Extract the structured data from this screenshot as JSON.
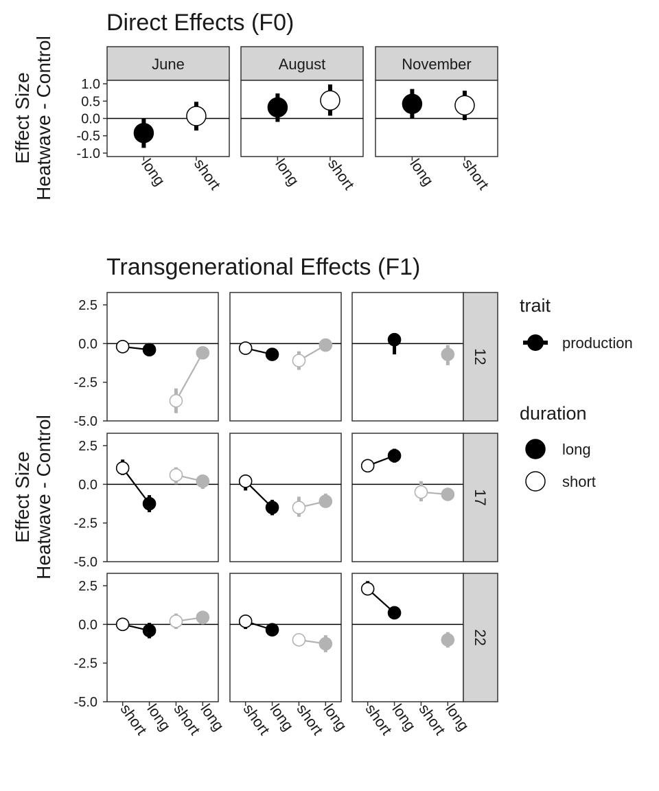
{
  "chart_data": [
    {
      "type": "scatter",
      "title": "Direct Effects (F0)",
      "ylabel": [
        "Effect Size",
        "Heatwave - Control"
      ],
      "ylim": [
        -1.1,
        1.1
      ],
      "yticks": [
        "1.0",
        "0.5",
        "0.0",
        "-0.5",
        "-1.0"
      ],
      "ytick_values": [
        1.0,
        0.5,
        0.0,
        -0.5,
        -1.0
      ],
      "categories": [
        "long",
        "short"
      ],
      "grid": false,
      "reference_line": 0,
      "panels": [
        {
          "label": "June",
          "points": [
            {
              "x": "long",
              "y": -0.42,
              "lo": -0.85,
              "hi": 0.0,
              "duration": "long"
            },
            {
              "x": "short",
              "y": 0.07,
              "lo": -0.35,
              "hi": 0.48,
              "duration": "short"
            }
          ]
        },
        {
          "label": "August",
          "points": [
            {
              "x": "long",
              "y": 0.32,
              "lo": -0.1,
              "hi": 0.72,
              "duration": "long"
            },
            {
              "x": "short",
              "y": 0.52,
              "lo": 0.08,
              "hi": 0.98,
              "duration": "short"
            }
          ]
        },
        {
          "label": "November",
          "points": [
            {
              "x": "long",
              "y": 0.42,
              "lo": 0.0,
              "hi": 0.85,
              "duration": "long"
            },
            {
              "x": "short",
              "y": 0.38,
              "lo": -0.05,
              "hi": 0.8,
              "duration": "short"
            }
          ]
        }
      ]
    },
    {
      "type": "line",
      "title": "Transgenerational Effects (F1)",
      "ylabel": [
        "Effect Size",
        "Heatwave - Control"
      ],
      "ylim": [
        -5.0,
        3.3
      ],
      "yticks": [
        "2.5",
        "0.0",
        "-2.5",
        "-5.0"
      ],
      "ytick_values": [
        2.5,
        0.0,
        -2.5,
        -5.0
      ],
      "categories": [
        "short",
        "long",
        "short",
        "long"
      ],
      "grid": false,
      "reference_line": 0,
      "legend_position": "right",
      "legends": [
        {
          "title": "trait",
          "entries": [
            {
              "label": "production"
            }
          ]
        },
        {
          "title": "duration",
          "entries": [
            {
              "label": "long",
              "fill": "#000000"
            },
            {
              "label": "short",
              "fill": "#ffffff"
            }
          ]
        }
      ],
      "colors": {
        "dark_group": "#000000",
        "light_group": "#b3b3b3"
      },
      "row_strips": [
        "12",
        "17",
        "22"
      ],
      "panels": [
        {
          "row": 0,
          "col": 0,
          "points": [
            {
              "x": 0,
              "y": -0.2,
              "lo": -0.6,
              "hi": 0.15,
              "duration": "short",
              "group": "dark"
            },
            {
              "x": 1,
              "y": -0.4,
              "lo": -0.65,
              "hi": -0.15,
              "duration": "long",
              "group": "dark"
            },
            {
              "x": 2,
              "y": -3.7,
              "lo": -4.5,
              "hi": -2.9,
              "duration": "short",
              "group": "light"
            },
            {
              "x": 3,
              "y": -0.6,
              "lo": -1.0,
              "hi": -0.2,
              "duration": "long",
              "group": "light"
            }
          ]
        },
        {
          "row": 0,
          "col": 1,
          "points": [
            {
              "x": 0,
              "y": -0.3,
              "lo": -0.7,
              "hi": 0.1,
              "duration": "short",
              "group": "dark"
            },
            {
              "x": 1,
              "y": -0.7,
              "lo": -1.0,
              "hi": -0.4,
              "duration": "long",
              "group": "dark"
            },
            {
              "x": 2,
              "y": -1.1,
              "lo": -1.7,
              "hi": -0.5,
              "duration": "short",
              "group": "light"
            },
            {
              "x": 3,
              "y": -0.1,
              "lo": -0.5,
              "hi": 0.3,
              "duration": "long",
              "group": "light"
            }
          ]
        },
        {
          "row": 0,
          "col": 2,
          "points": [
            {
              "x": 1,
              "y": 0.25,
              "lo": -0.7,
              "hi": 0.5,
              "duration": "long",
              "group": "dark"
            },
            {
              "x": 3,
              "y": -0.7,
              "lo": -1.4,
              "hi": -0.1,
              "duration": "long",
              "group": "light"
            }
          ]
        },
        {
          "row": 1,
          "col": 0,
          "points": [
            {
              "x": 0,
              "y": 1.05,
              "lo": 0.6,
              "hi": 1.6,
              "duration": "short",
              "group": "dark"
            },
            {
              "x": 1,
              "y": -1.25,
              "lo": -1.8,
              "hi": -0.7,
              "duration": "long",
              "group": "dark"
            },
            {
              "x": 2,
              "y": 0.6,
              "lo": 0.0,
              "hi": 1.1,
              "duration": "short",
              "group": "light"
            },
            {
              "x": 3,
              "y": 0.2,
              "lo": -0.3,
              "hi": 0.6,
              "duration": "long",
              "group": "light"
            }
          ]
        },
        {
          "row": 1,
          "col": 1,
          "points": [
            {
              "x": 0,
              "y": 0.2,
              "lo": -0.4,
              "hi": 0.6,
              "duration": "short",
              "group": "dark"
            },
            {
              "x": 1,
              "y": -1.5,
              "lo": -2.0,
              "hi": -1.0,
              "duration": "long",
              "group": "dark"
            },
            {
              "x": 2,
              "y": -1.5,
              "lo": -2.1,
              "hi": -0.8,
              "duration": "short",
              "group": "light"
            },
            {
              "x": 3,
              "y": -1.1,
              "lo": -1.5,
              "hi": -0.6,
              "duration": "long",
              "group": "light"
            }
          ]
        },
        {
          "row": 1,
          "col": 2,
          "points": [
            {
              "x": 0,
              "y": 1.2,
              "lo": 1.0,
              "hi": 1.4,
              "duration": "short",
              "group": "dark"
            },
            {
              "x": 1,
              "y": 1.85,
              "lo": 1.4,
              "hi": 2.3,
              "duration": "long",
              "group": "dark"
            },
            {
              "x": 2,
              "y": -0.5,
              "lo": -1.1,
              "hi": 0.2,
              "duration": "short",
              "group": "light"
            },
            {
              "x": 3,
              "y": -0.65,
              "lo": -1.0,
              "hi": -0.3,
              "duration": "long",
              "group": "light"
            }
          ]
        },
        {
          "row": 2,
          "col": 0,
          "points": [
            {
              "x": 0,
              "y": 0.0,
              "lo": -0.4,
              "hi": 0.3,
              "duration": "short",
              "group": "dark"
            },
            {
              "x": 1,
              "y": -0.4,
              "lo": -0.9,
              "hi": 0.1,
              "duration": "long",
              "group": "dark"
            },
            {
              "x": 2,
              "y": 0.2,
              "lo": -0.3,
              "hi": 0.7,
              "duration": "short",
              "group": "light"
            },
            {
              "x": 3,
              "y": 0.45,
              "lo": 0.0,
              "hi": 0.8,
              "duration": "long",
              "group": "light"
            }
          ]
        },
        {
          "row": 2,
          "col": 1,
          "points": [
            {
              "x": 0,
              "y": 0.2,
              "lo": -0.3,
              "hi": 0.5,
              "duration": "short",
              "group": "dark"
            },
            {
              "x": 1,
              "y": -0.35,
              "lo": -0.7,
              "hi": -0.05,
              "duration": "long",
              "group": "dark"
            },
            {
              "x": 2,
              "y": -1.0,
              "lo": -1.3,
              "hi": -0.7,
              "duration": "short",
              "group": "light"
            },
            {
              "x": 3,
              "y": -1.25,
              "lo": -1.8,
              "hi": -0.7,
              "duration": "long",
              "group": "light"
            }
          ]
        },
        {
          "row": 2,
          "col": 2,
          "points": [
            {
              "x": 0,
              "y": 2.3,
              "lo": 1.9,
              "hi": 2.8,
              "duration": "short",
              "group": "dark"
            },
            {
              "x": 1,
              "y": 0.75,
              "lo": 0.6,
              "hi": 0.9,
              "duration": "long",
              "group": "dark"
            },
            {
              "x": 3,
              "y": -1.0,
              "lo": -1.5,
              "hi": -0.5,
              "duration": "long",
              "group": "light"
            }
          ]
        }
      ]
    }
  ]
}
